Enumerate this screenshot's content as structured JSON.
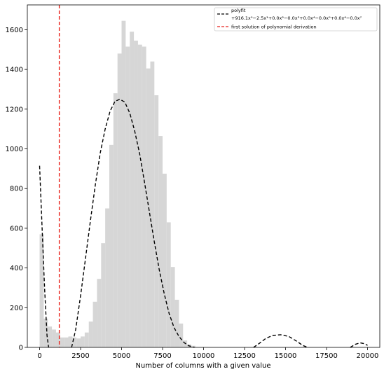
{
  "chart_data": {
    "type": "bar",
    "xlabel": "Number of columns with a given value",
    "ylabel": "",
    "xlim": [
      -750,
      20750
    ],
    "ylim": [
      0,
      1725
    ],
    "x_ticks": [
      0,
      2500,
      5000,
      7500,
      10000,
      12500,
      15000,
      17500,
      20000
    ],
    "y_ticks": [
      0,
      200,
      400,
      600,
      800,
      1000,
      1200,
      1400,
      1600
    ],
    "grid": false,
    "legend_position": "top-right",
    "colors": {
      "histogram": "#d6d6d6",
      "polyfit": "#000000",
      "vline": "#e8221c"
    },
    "histogram": {
      "bin_width": 250,
      "bars": [
        {
          "x": 0,
          "y": 570
        },
        {
          "x": 250,
          "y": 145
        },
        {
          "x": 500,
          "y": 105
        },
        {
          "x": 750,
          "y": 90
        },
        {
          "x": 1000,
          "y": 75
        },
        {
          "x": 1250,
          "y": 50
        },
        {
          "x": 1500,
          "y": 50
        },
        {
          "x": 1750,
          "y": 55
        },
        {
          "x": 2000,
          "y": 50
        },
        {
          "x": 2250,
          "y": 45
        },
        {
          "x": 2500,
          "y": 55
        },
        {
          "x": 2750,
          "y": 75
        },
        {
          "x": 3000,
          "y": 130
        },
        {
          "x": 3250,
          "y": 230
        },
        {
          "x": 3500,
          "y": 345
        },
        {
          "x": 3750,
          "y": 525
        },
        {
          "x": 4000,
          "y": 700
        },
        {
          "x": 4250,
          "y": 1020
        },
        {
          "x": 4500,
          "y": 1280
        },
        {
          "x": 4750,
          "y": 1480
        },
        {
          "x": 5000,
          "y": 1645
        },
        {
          "x": 5250,
          "y": 1515
        },
        {
          "x": 5500,
          "y": 1590
        },
        {
          "x": 5750,
          "y": 1545
        },
        {
          "x": 6000,
          "y": 1525
        },
        {
          "x": 6250,
          "y": 1515
        },
        {
          "x": 6500,
          "y": 1405
        },
        {
          "x": 6750,
          "y": 1440
        },
        {
          "x": 7000,
          "y": 1270
        },
        {
          "x": 7250,
          "y": 1065
        },
        {
          "x": 7500,
          "y": 875
        },
        {
          "x": 7750,
          "y": 630
        },
        {
          "x": 8000,
          "y": 405
        },
        {
          "x": 8250,
          "y": 240
        },
        {
          "x": 8500,
          "y": 120
        },
        {
          "x": 8750,
          "y": 35
        },
        {
          "x": 9000,
          "y": 15
        },
        {
          "x": 9250,
          "y": 8
        }
      ]
    },
    "vline": {
      "x": 1200
    },
    "polyfit_curve": [
      {
        "x": 0,
        "y": 915
      },
      {
        "x": 150,
        "y": 600
      },
      {
        "x": 300,
        "y": 300
      },
      {
        "x": 450,
        "y": 60
      },
      {
        "x": 550,
        "y": 0
      },
      {
        "x": 1950,
        "y": 0
      },
      {
        "x": 2200,
        "y": 90
      },
      {
        "x": 2500,
        "y": 260
      },
      {
        "x": 2800,
        "y": 450
      },
      {
        "x": 3100,
        "y": 640
      },
      {
        "x": 3400,
        "y": 820
      },
      {
        "x": 3700,
        "y": 980
      },
      {
        "x": 4000,
        "y": 1100
      },
      {
        "x": 4300,
        "y": 1190
      },
      {
        "x": 4600,
        "y": 1240
      },
      {
        "x": 4900,
        "y": 1250
      },
      {
        "x": 5200,
        "y": 1235
      },
      {
        "x": 5500,
        "y": 1180
      },
      {
        "x": 5800,
        "y": 1090
      },
      {
        "x": 6100,
        "y": 975
      },
      {
        "x": 6400,
        "y": 830
      },
      {
        "x": 6700,
        "y": 680
      },
      {
        "x": 7000,
        "y": 530
      },
      {
        "x": 7300,
        "y": 390
      },
      {
        "x": 7600,
        "y": 270
      },
      {
        "x": 7900,
        "y": 170
      },
      {
        "x": 8200,
        "y": 100
      },
      {
        "x": 8500,
        "y": 55
      },
      {
        "x": 8800,
        "y": 25
      },
      {
        "x": 9100,
        "y": 8
      },
      {
        "x": 9450,
        "y": 0
      },
      {
        "x": 13050,
        "y": 0
      },
      {
        "x": 13400,
        "y": 20
      },
      {
        "x": 13800,
        "y": 45
      },
      {
        "x": 14200,
        "y": 60
      },
      {
        "x": 14700,
        "y": 64
      },
      {
        "x": 15200,
        "y": 55
      },
      {
        "x": 15700,
        "y": 30
      },
      {
        "x": 16050,
        "y": 10
      },
      {
        "x": 16350,
        "y": 0
      },
      {
        "x": 18950,
        "y": 0
      },
      {
        "x": 19250,
        "y": 15
      },
      {
        "x": 19550,
        "y": 23
      },
      {
        "x": 19850,
        "y": 18
      },
      {
        "x": 20000,
        "y": 10
      }
    ],
    "legend": [
      {
        "key": "polyfit",
        "style": "black-dashed",
        "label": "polyfit",
        "sublabel": "+916.1x⁰−2.5x¹+0.0x²−0.0x³+0.0x⁴−0.0x⁵+0.0x⁶−0.0x⁷"
      },
      {
        "key": "vline",
        "style": "red-dashed",
        "label": "first solution of polynomial derivation"
      }
    ]
  }
}
